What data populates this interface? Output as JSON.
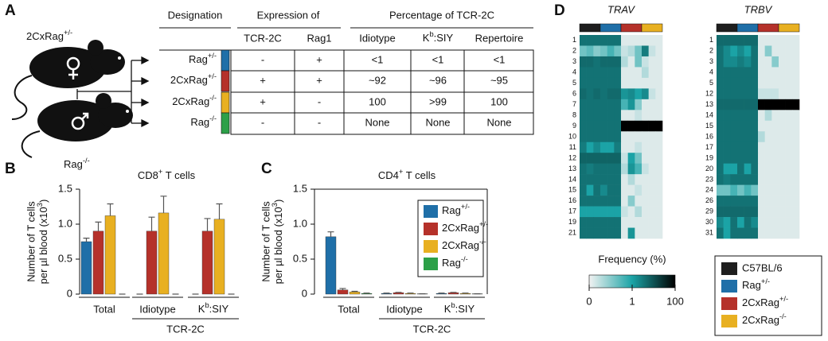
{
  "panel_a": {
    "label": "A",
    "mouse_top": {
      "base": "2CxRag",
      "sup": "+/-"
    },
    "mouse_bottom": {
      "base": "Rag",
      "sup": "-/-"
    },
    "table": {
      "header_groups": [
        "Designation",
        "Expression of",
        "Percentage of TCR-2C"
      ],
      "columns": [
        "TCR-2C",
        "Rag1",
        "Idiotype",
        {
          "base": "K",
          "sup": "b",
          "rest": ":SIY"
        },
        "Repertoire"
      ],
      "rows": [
        {
          "label": {
            "base": "Rag",
            "sup": "+/-"
          },
          "color": "#1f6fa8",
          "cells": [
            "-",
            "+",
            "<1",
            "<1",
            "<1"
          ]
        },
        {
          "label": {
            "base": "2CxRag",
            "sup": "+/-"
          },
          "color": "#b5312a",
          "cells": [
            "+",
            "+",
            "~92",
            "~96",
            "~95"
          ]
        },
        {
          "label": {
            "base": "2CxRag",
            "sup": "-/-"
          },
          "color": "#e8b021",
          "cells": [
            "+",
            "-",
            "100",
            ">99",
            "100"
          ]
        },
        {
          "label": {
            "base": "Rag",
            "sup": "-/-"
          },
          "color": "#2ca048",
          "cells": [
            "-",
            "-",
            "None",
            "None",
            "None"
          ]
        }
      ]
    }
  },
  "panel_b": {
    "label": "B",
    "chart": {
      "type": "bar",
      "title": {
        "base": "CD8",
        "sup": "+",
        "rest": " T cells"
      },
      "y_label": [
        "Number of T cells",
        {
          "base": "per µl blood (x10",
          "sup": "3",
          "rest": ")"
        }
      ],
      "categories": [
        "Total",
        "Idiotype",
        {
          "base": "K",
          "sup": "b",
          "rest": ":SIY"
        }
      ],
      "group_label": "TCR-2C",
      "series": [
        {
          "color": "#1f6fa8",
          "values": [
            0.75,
            0,
            0
          ],
          "errors": [
            0.05,
            0,
            0
          ]
        },
        {
          "color": "#b5312a",
          "values": [
            0.9,
            0.9,
            0.9
          ],
          "errors": [
            0.13,
            0.2,
            0.18
          ]
        },
        {
          "color": "#e8b021",
          "values": [
            1.12,
            1.16,
            1.07
          ],
          "errors": [
            0.17,
            0.24,
            0.22
          ]
        },
        {
          "color": "#2ca048",
          "values": [
            0,
            0,
            0
          ],
          "errors": [
            0,
            0,
            0
          ]
        }
      ],
      "ylim": [
        0,
        1.5
      ],
      "yticks": [
        0,
        0.5,
        {
          "value": 1,
          "label": "1.0"
        },
        {
          "value": 1.5,
          "label": "1.5"
        }
      ]
    }
  },
  "panel_c": {
    "label": "C",
    "chart": {
      "type": "bar",
      "title": {
        "base": "CD4",
        "sup": "+",
        "rest": " T cells"
      },
      "y_label": [
        "Number of T cells",
        {
          "base": "per µl blood (x10",
          "sup": "3",
          "rest": ")"
        }
      ],
      "categories": [
        "Total",
        "Idiotype",
        {
          "base": "K",
          "sup": "b",
          "rest": ":SIY"
        }
      ],
      "group_label": "TCR-2C",
      "series": [
        {
          "name": {
            "base": "Rag",
            "sup": "+/-"
          },
          "color": "#1f6fa8",
          "values": [
            0.82,
            0.01,
            0.01
          ],
          "errors": [
            0.07,
            0.005,
            0.005
          ]
        },
        {
          "name": {
            "base": "2CxRag",
            "sup": "+/-"
          },
          "color": "#b5312a",
          "values": [
            0.06,
            0.02,
            0.02
          ],
          "errors": [
            0.02,
            0.005,
            0.005
          ]
        },
        {
          "name": {
            "base": "2CxRag",
            "sup": "-/-"
          },
          "color": "#e8b021",
          "values": [
            0.03,
            0.01,
            0.01
          ],
          "errors": [
            0.01,
            0.005,
            0.005
          ]
        },
        {
          "name": {
            "base": "Rag",
            "sup": "-/-"
          },
          "color": "#2ca048",
          "values": [
            0.01,
            0.005,
            0.005
          ],
          "errors": [
            0.005,
            0,
            0
          ]
        }
      ],
      "ylim": [
        0,
        1.5
      ],
      "yticks": [
        0,
        0.5,
        {
          "value": 1,
          "label": "1.0"
        },
        {
          "value": 1.5,
          "label": "1.5"
        }
      ]
    }
  },
  "panel_d": {
    "label": "D",
    "heatmaps": [
      {
        "title": "TRAV",
        "rows": [
          "1",
          "2",
          "3",
          "4",
          "5",
          "6",
          "7",
          "8",
          "9",
          "10",
          "11",
          "12",
          "13",
          "14",
          "15",
          "16",
          "17",
          "19",
          "21"
        ],
        "values": [
          [
            4,
            4,
            4,
            4,
            4,
            4,
            0.1,
            0.1,
            0.1,
            0.1,
            0.1,
            0.1
          ],
          [
            0.6,
            0.7,
            0.5,
            0.6,
            0.8,
            0.6,
            0.2,
            0.3,
            0.6,
            3,
            0.2,
            0.1
          ],
          [
            5,
            5,
            4,
            5,
            5,
            5,
            0.3,
            0.1,
            0.6,
            0.2,
            0.1,
            0.1
          ],
          [
            4,
            4,
            4,
            4,
            4,
            4,
            0.1,
            0.1,
            0.1,
            0.3,
            0.1,
            0.1
          ],
          [
            4,
            4,
            4,
            4,
            4,
            4,
            0.1,
            0.1,
            0.1,
            0.1,
            0.1,
            0.1
          ],
          [
            5,
            4,
            5,
            4,
            5,
            5,
            1.5,
            2,
            1,
            2,
            0.2,
            0.1
          ],
          [
            4,
            4,
            4,
            4,
            4,
            4,
            0.8,
            1.5,
            0.5,
            0.1,
            0.1,
            0.1
          ],
          [
            4,
            4,
            4,
            4,
            4,
            4,
            0.1,
            0.1,
            0.2,
            0.1,
            0.1,
            0.1
          ],
          [
            4,
            4,
            4,
            4,
            4,
            4,
            100,
            100,
            100,
            100,
            100,
            100
          ],
          [
            4,
            4,
            4,
            4,
            4,
            4,
            0.1,
            0.1,
            0.1,
            0.1,
            0.1,
            0.1
          ],
          [
            3,
            1,
            2,
            1,
            1,
            3,
            0.1,
            0.1,
            0.2,
            0.1,
            0.1,
            0.1
          ],
          [
            6,
            6,
            6,
            6,
            6,
            6,
            0.2,
            1,
            0.6,
            0.1,
            0.1,
            0.1
          ],
          [
            4,
            3,
            4,
            4,
            4,
            4,
            0.3,
            1.5,
            0.8,
            0.2,
            0.1,
            0.1
          ],
          [
            4,
            4,
            4,
            4,
            4,
            4,
            0.1,
            0.3,
            0.1,
            0.1,
            0.1,
            0.1
          ],
          [
            4,
            1,
            4,
            2,
            4,
            4,
            0.1,
            0.1,
            0.2,
            0.1,
            0.1,
            0.1
          ],
          [
            4,
            4,
            4,
            4,
            4,
            4,
            0.1,
            0.5,
            0.1,
            0.1,
            0.1,
            0.1
          ],
          [
            1,
            1,
            1,
            1,
            1,
            1,
            0.2,
            0.1,
            0.3,
            0.1,
            0.1,
            0.1
          ],
          [
            4,
            4,
            4,
            4,
            4,
            4,
            0.1,
            0.1,
            0.1,
            0.1,
            0.1,
            0.1
          ],
          [
            4,
            4,
            4,
            4,
            4,
            4,
            0.1,
            1.5,
            0.1,
            0.1,
            0.1,
            0.1
          ]
        ]
      },
      {
        "title": "TRBV",
        "rows": [
          "1",
          "2",
          "3",
          "4",
          "5",
          "12",
          "13",
          "14",
          "15",
          "16",
          "17",
          "19",
          "20",
          "23",
          "24",
          "26",
          "29",
          "30",
          "31"
        ],
        "values": [
          [
            5,
            5,
            5,
            5,
            5,
            5,
            0.1,
            0.1,
            0.1,
            0.1,
            0.1,
            0.1
          ],
          [
            4,
            2,
            1,
            2,
            1,
            4,
            0.1,
            0.5,
            0.1,
            0.1,
            0.1,
            0.1
          ],
          [
            4,
            2,
            2,
            3,
            2,
            4,
            0.1,
            0.1,
            0.5,
            0.1,
            0.1,
            0.1
          ],
          [
            4,
            4,
            4,
            4,
            4,
            4,
            0.1,
            0.1,
            0.1,
            0.1,
            0.1,
            0.1
          ],
          [
            4,
            4,
            4,
            4,
            4,
            4,
            0.1,
            0.1,
            0.1,
            0.1,
            0.1,
            0.1
          ],
          [
            4,
            4,
            4,
            4,
            4,
            4,
            0.2,
            0.2,
            0.2,
            0.1,
            0.1,
            0.1
          ],
          [
            5,
            5,
            5,
            5,
            5,
            5,
            100,
            100,
            100,
            100,
            100,
            100
          ],
          [
            4,
            4,
            4,
            4,
            4,
            4,
            0.1,
            0.3,
            0.1,
            0.1,
            0.1,
            0.1
          ],
          [
            4,
            4,
            4,
            4,
            4,
            4,
            0.1,
            0.1,
            0.1,
            0.1,
            0.1,
            0.1
          ],
          [
            4,
            4,
            4,
            4,
            4,
            4,
            0.3,
            0.1,
            0.1,
            0.1,
            0.1,
            0.1
          ],
          [
            4,
            4,
            4,
            4,
            4,
            4,
            0.1,
            0.1,
            0.1,
            0.1,
            0.1,
            0.1
          ],
          [
            4,
            4,
            4,
            4,
            4,
            4,
            0.1,
            0.1,
            0.1,
            0.1,
            0.1,
            0.1
          ],
          [
            4,
            1,
            1,
            4,
            1,
            4,
            0.1,
            0.1,
            0.1,
            0.1,
            0.1,
            0.1
          ],
          [
            4,
            3,
            4,
            4,
            4,
            4,
            0.1,
            0.1,
            0.1,
            0.1,
            0.1,
            0.1
          ],
          [
            0.6,
            0.6,
            0.8,
            0.6,
            0.8,
            0.6,
            0.1,
            0.1,
            0.1,
            0.1,
            0.1,
            0.1
          ],
          [
            4,
            4,
            4,
            4,
            4,
            4,
            0.1,
            0.1,
            0.1,
            0.1,
            0.1,
            0.1
          ],
          [
            5,
            5,
            5,
            5,
            5,
            5,
            0.1,
            0.1,
            0.1,
            0.1,
            0.1,
            0.1
          ],
          [
            2,
            1,
            4,
            1,
            4,
            2,
            0.1,
            0.1,
            0.1,
            0.1,
            0.1,
            0.1
          ],
          [
            4,
            1,
            4,
            4,
            4,
            4,
            0.1,
            0.1,
            0.1,
            0.1,
            0.1,
            0.1
          ]
        ]
      }
    ],
    "colorbar": {
      "title": "Frequency (%)",
      "ticks": [
        0,
        1,
        100
      ]
    },
    "legend": [
      {
        "name": "C57BL/6",
        "color": "#1e1e1e"
      },
      {
        "name": {
          "base": "Rag",
          "sup": "+/-"
        },
        "color": "#1f6fa8"
      },
      {
        "name": {
          "base": "2CxRag",
          "sup": "+/-"
        },
        "color": "#b5312a"
      },
      {
        "name": {
          "base": "2CxRag",
          "sup": "-/-"
        },
        "color": "#e8b021"
      }
    ]
  }
}
